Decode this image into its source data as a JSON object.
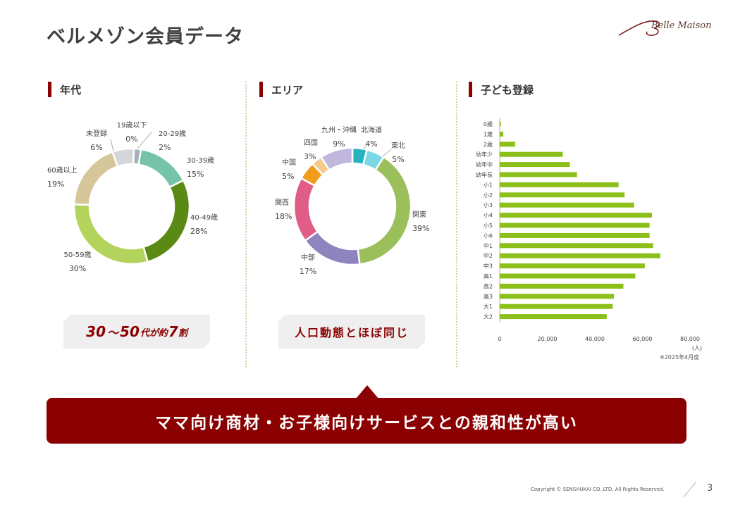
{
  "title": "ベルメゾン会員データ",
  "logo": {
    "text": "Belle Maison"
  },
  "sections": {
    "age": {
      "label": "年代",
      "note_num1": "30",
      "note_tilde": "～",
      "note_num2": "50",
      "note_mid": "代が約",
      "note_num3": "7",
      "note_end": "割"
    },
    "area": {
      "label": "エリア",
      "note": "人口動態とほぼ同じ"
    },
    "children": {
      "label": "子ども登録",
      "unit": "(人)",
      "year_note": "※2025年4月度"
    }
  },
  "banner": "ママ向け商材・お子様向けサービスとの親和性が高い",
  "footer": {
    "copyright": "Copyright © SENSHUKAI CO.,LTD. All Rights Reserved.",
    "page": "3"
  },
  "colors": {
    "accent": "#8b0000",
    "bar": "#8cbf1a"
  },
  "chart_data": [
    {
      "type": "pie",
      "title": "年代",
      "categories": [
        "19歳以下",
        "20-29歳",
        "30-39歳",
        "40-49歳",
        "50-59歳",
        "60歳以上",
        "未登録"
      ],
      "values": [
        0,
        2,
        15,
        28,
        30,
        19,
        6
      ],
      "labels": [
        "0%",
        "2%",
        "15%",
        "28%",
        "30%",
        "19%",
        "6%"
      ],
      "colors": [
        "#b8b8b8",
        "#a6b2bc",
        "#76c4a8",
        "#5a8a13",
        "#b2d45c",
        "#d6c79a",
        "#d3d7dc"
      ]
    },
    {
      "type": "pie",
      "title": "エリア",
      "categories": [
        "北海道",
        "東北",
        "関東",
        "中部",
        "関西",
        "中国",
        "四国",
        "九州・沖縄"
      ],
      "values": [
        4,
        5,
        39,
        17,
        18,
        5,
        3,
        9
      ],
      "labels": [
        "4%",
        "5%",
        "39%",
        "17%",
        "18%",
        "5%",
        "3%",
        "9%"
      ],
      "colors": [
        "#26b2c0",
        "#7ad8e6",
        "#9bbf5a",
        "#8c85c0",
        "#e05d86",
        "#f29c1c",
        "#f5c98a",
        "#bfb8dc"
      ]
    },
    {
      "type": "bar",
      "orientation": "horizontal",
      "title": "子ども登録",
      "categories": [
        "0歳",
        "1歳",
        "2歳",
        "幼年少",
        "幼年中",
        "幼年長",
        "小1",
        "小2",
        "小3",
        "小4",
        "小5",
        "小6",
        "中1",
        "中2",
        "中3",
        "高1",
        "高2",
        "高3",
        "大1",
        "大2"
      ],
      "values": [
        500,
        1500,
        6500,
        26500,
        29500,
        32500,
        50000,
        52500,
        56500,
        64000,
        63000,
        63000,
        64500,
        67500,
        61000,
        57000,
        52000,
        48000,
        47500,
        45000
      ],
      "xlim": [
        0,
        80000
      ],
      "xticks": [
        "0",
        "20,000",
        "40,000",
        "60,000",
        "80,000"
      ],
      "xlabel": "(人)"
    }
  ]
}
